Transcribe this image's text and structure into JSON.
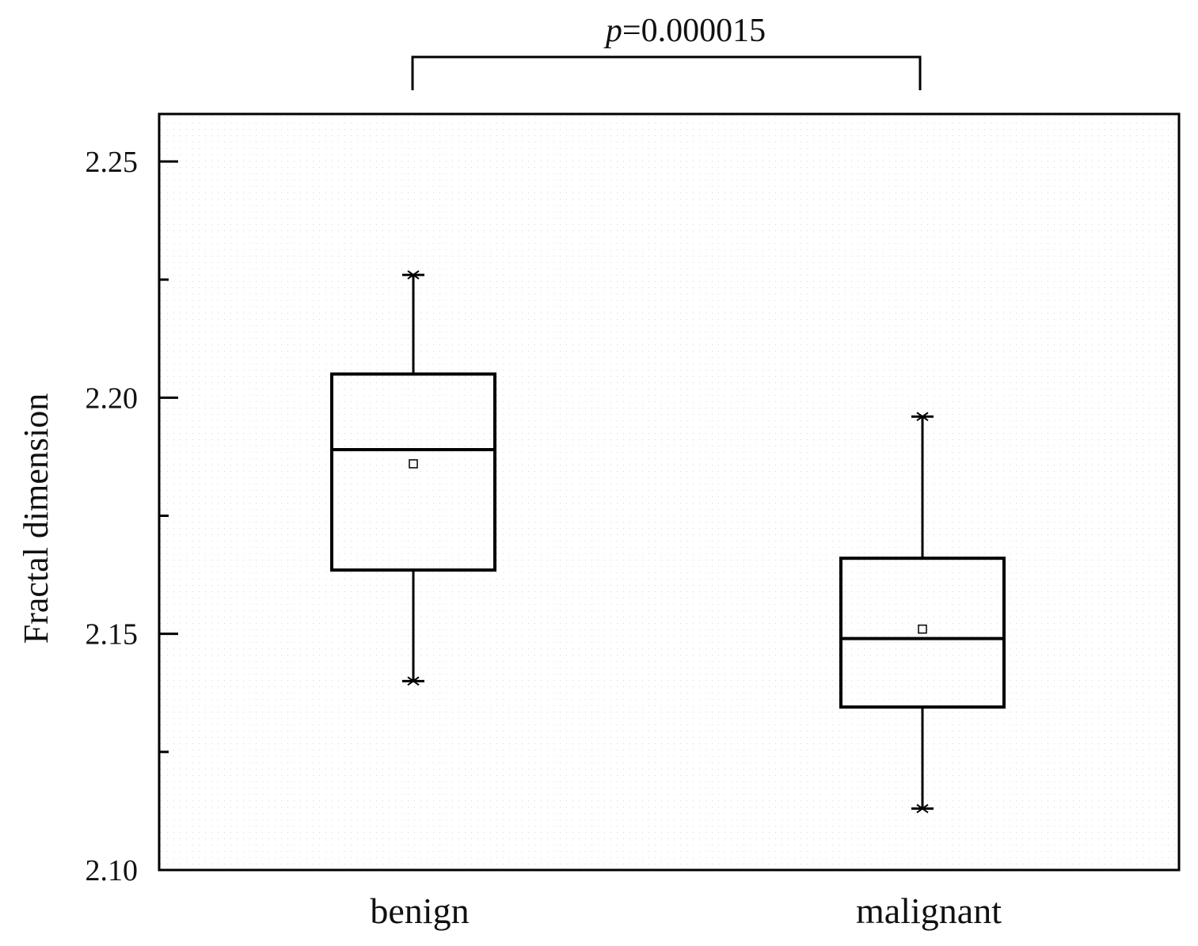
{
  "chart_data": {
    "type": "box",
    "ylabel": "Fractal dimension",
    "ylim": [
      2.1,
      2.26
    ],
    "yticks": [
      "2.10",
      "2.15",
      "2.20",
      "2.25"
    ],
    "minor_ticks": [
      2.125,
      2.175,
      2.225
    ],
    "categories": [
      "benign",
      "malignant"
    ],
    "boxes": [
      {
        "category": "benign",
        "min": 2.14,
        "q1": 2.1635,
        "median": 2.189,
        "q3": 2.205,
        "max": 2.226,
        "mean": 2.186
      },
      {
        "category": "malignant",
        "min": 2.113,
        "q1": 2.1345,
        "median": 2.149,
        "q3": 2.166,
        "max": 2.196,
        "mean": 2.151
      }
    ],
    "significance": {
      "p_prefix": "p",
      "p_value": "=0.000015",
      "between": [
        "benign",
        "malignant"
      ]
    },
    "grid": "dotted-background",
    "legend": "none"
  }
}
